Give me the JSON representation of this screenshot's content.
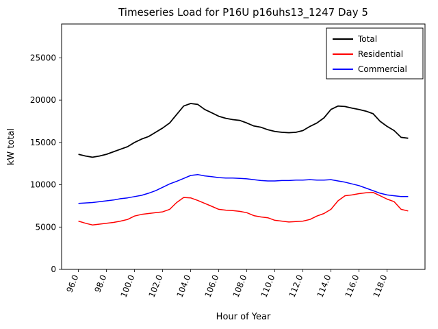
{
  "title": "Timeseries Load for P16U p16uhs13_1247  Day 5",
  "chart_data": {
    "type": "line",
    "title": "Timeseries Load for P16U p16uhs13_1247  Day 5",
    "xlabel": "Hour of Year",
    "ylabel": "kW total",
    "xlim": [
      94.8,
      120.7
    ],
    "ylim": [
      0,
      29000
    ],
    "xticks": [
      96,
      98,
      100,
      102,
      104,
      106,
      108,
      110,
      112,
      114,
      116,
      118
    ],
    "xtick_labels": [
      "96.0",
      "98.0",
      "100.0",
      "102.0",
      "104.0",
      "106.0",
      "108.0",
      "110.0",
      "112.0",
      "114.0",
      "116.0",
      "118.0"
    ],
    "yticks": [
      0,
      5000,
      10000,
      15000,
      20000,
      25000
    ],
    "ytick_labels": [
      "0",
      "5000",
      "10000",
      "15000",
      "20000",
      "25000"
    ],
    "grid": false,
    "legend_position": "upper right",
    "legend_entries": [
      "Total",
      "Residential",
      "Commercial"
    ],
    "x": [
      96.0,
      96.5,
      97.0,
      97.5,
      98.0,
      98.5,
      99.0,
      99.5,
      100.0,
      100.5,
      101.0,
      101.5,
      102.0,
      102.5,
      103.0,
      103.5,
      104.0,
      104.5,
      105.0,
      105.5,
      106.0,
      106.5,
      107.0,
      107.5,
      108.0,
      108.5,
      109.0,
      109.5,
      110.0,
      110.5,
      111.0,
      111.5,
      112.0,
      112.5,
      113.0,
      113.5,
      114.0,
      114.5,
      115.0,
      115.5,
      116.0,
      116.5,
      117.0,
      117.5,
      118.0,
      118.5,
      119.0,
      119.5
    ],
    "series": [
      {
        "name": "Total",
        "color": "#000000",
        "linewidth": 1.8,
        "values": [
          13600,
          13400,
          13250,
          13400,
          13600,
          13900,
          14200,
          14500,
          15000,
          15400,
          15700,
          16200,
          16700,
          17300,
          18300,
          19300,
          19600,
          19500,
          18900,
          18500,
          18100,
          17850,
          17700,
          17600,
          17300,
          16950,
          16800,
          16500,
          16300,
          16200,
          16150,
          16200,
          16400,
          16900,
          17300,
          17900,
          18900,
          19300,
          19250,
          19050,
          18900,
          18700,
          18400,
          17500,
          16900,
          16400,
          15600,
          15500
        ]
      },
      {
        "name": "Residential",
        "color": "#ff0000",
        "linewidth": 1.5,
        "values": [
          5700,
          5450,
          5250,
          5350,
          5450,
          5550,
          5700,
          5900,
          6300,
          6500,
          6600,
          6700,
          6800,
          7100,
          7900,
          8500,
          8450,
          8150,
          7800,
          7450,
          7100,
          7000,
          6950,
          6850,
          6700,
          6350,
          6200,
          6100,
          5800,
          5700,
          5600,
          5650,
          5700,
          5900,
          6300,
          6600,
          7100,
          8100,
          8700,
          8800,
          8950,
          9050,
          9100,
          8700,
          8300,
          8000,
          7100,
          6900
        ]
      },
      {
        "name": "Commercial",
        "color": "#0000ff",
        "linewidth": 1.5,
        "values": [
          7800,
          7850,
          7900,
          8000,
          8100,
          8200,
          8350,
          8450,
          8600,
          8750,
          9000,
          9300,
          9700,
          10100,
          10400,
          10750,
          11100,
          11200,
          11050,
          10950,
          10850,
          10800,
          10800,
          10750,
          10700,
          10600,
          10500,
          10450,
          10450,
          10500,
          10500,
          10550,
          10550,
          10600,
          10550,
          10550,
          10600,
          10450,
          10300,
          10100,
          9900,
          9600,
          9300,
          9000,
          8800,
          8700,
          8600,
          8600
        ]
      }
    ]
  }
}
